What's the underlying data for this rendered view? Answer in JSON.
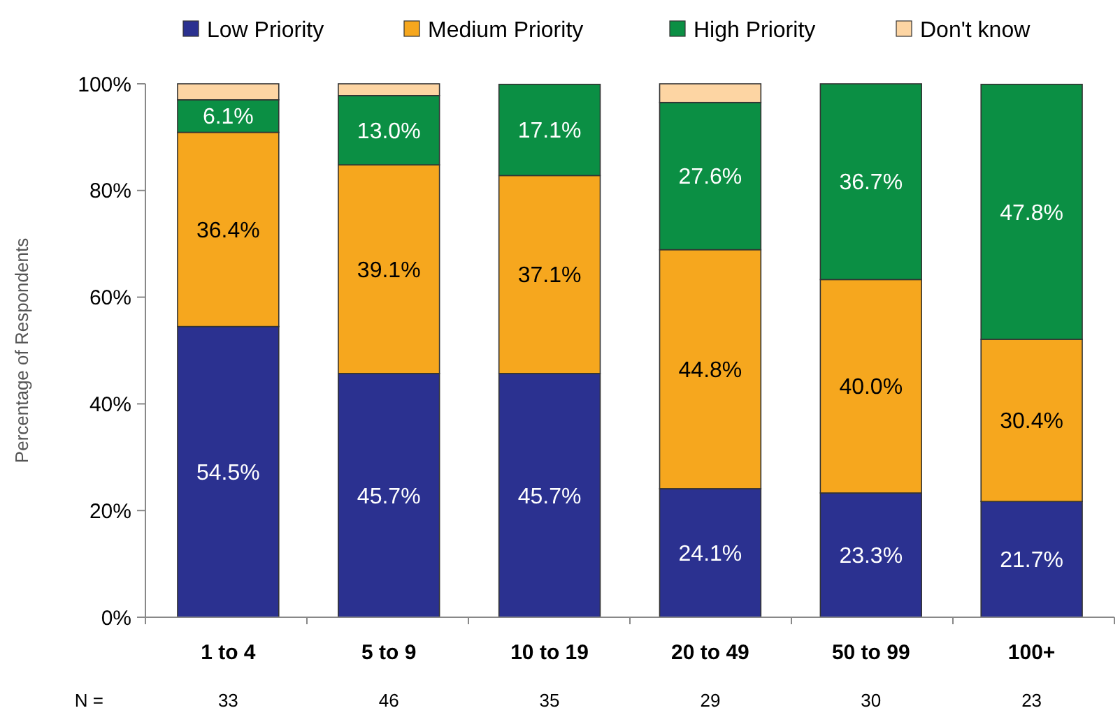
{
  "chart_data": {
    "type": "bar",
    "stacked": true,
    "ylabel": "Percentage of Respondents",
    "categories": [
      "1 to 4",
      "5 to 9",
      "10 to 19",
      "20 to 49",
      "50 to 99",
      "100+"
    ],
    "series": [
      {
        "name": "Low Priority",
        "color": "#2b3190",
        "values": [
          54.5,
          45.7,
          45.7,
          24.1,
          23.3,
          21.7
        ],
        "value_labels": [
          "54.5%",
          "45.7%",
          "45.7%",
          "24.1%",
          "23.3%",
          "21.7%"
        ]
      },
      {
        "name": "Medium Priority",
        "color": "#f6a71e",
        "values": [
          36.4,
          39.1,
          37.1,
          44.8,
          40.0,
          30.4
        ],
        "value_labels": [
          "36.4%",
          "39.1%",
          "37.1%",
          "44.8%",
          "40.0%",
          "30.4%"
        ]
      },
      {
        "name": "High Priority",
        "color": "#0b8f44",
        "values": [
          6.1,
          13.0,
          17.1,
          27.6,
          36.7,
          47.8
        ],
        "value_labels": [
          "6.1%",
          "13.0%",
          "17.1%",
          "27.6%",
          "36.7%",
          "47.8%"
        ]
      },
      {
        "name": "Don't know",
        "color": "#fdd5a3",
        "values": [
          3.0,
          2.2,
          0,
          3.5,
          0,
          0
        ],
        "value_labels": [
          null,
          null,
          null,
          null,
          null,
          null
        ]
      }
    ],
    "ylim": [
      0,
      100
    ],
    "yticks": [
      {
        "value": 0,
        "label": "0%"
      },
      {
        "value": 20,
        "label": "20%"
      },
      {
        "value": 40,
        "label": "40%"
      },
      {
        "value": 60,
        "label": "60%"
      },
      {
        "value": 80,
        "label": "80%"
      },
      {
        "value": 100,
        "label": "100%"
      }
    ],
    "grid": false,
    "legend": "top",
    "annotations": [
      "N =",
      "33",
      "46",
      "35",
      "29",
      "30",
      "23"
    ]
  }
}
